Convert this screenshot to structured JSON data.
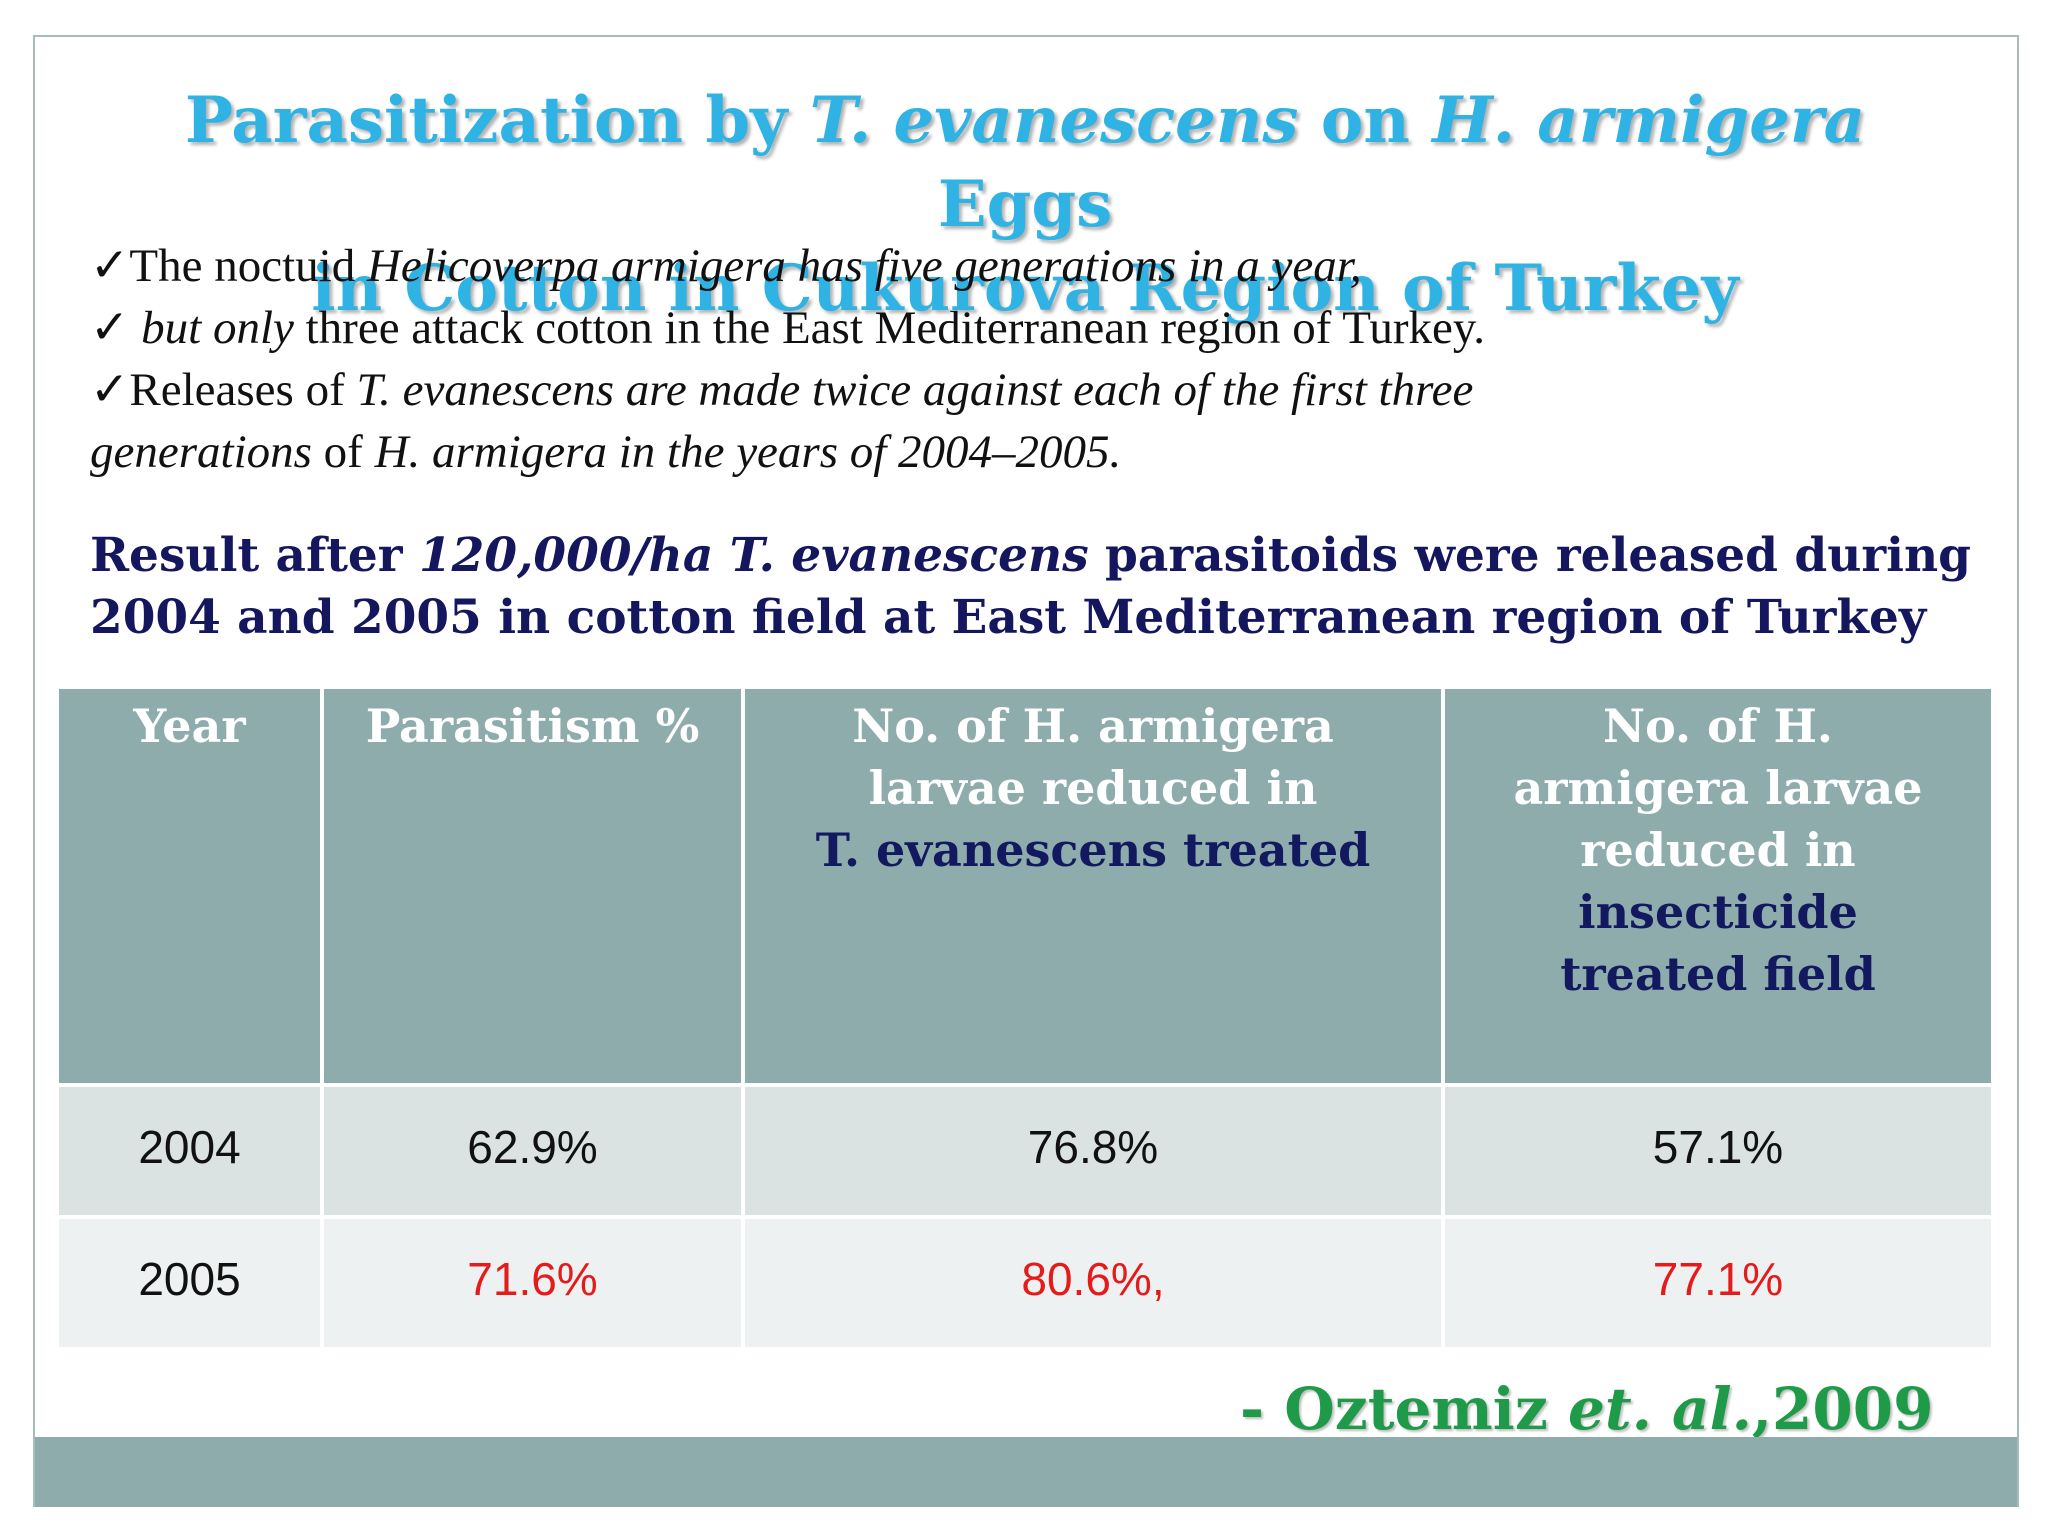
{
  "title": {
    "p1": "Parasitization by ",
    "p2": "T. evanescens",
    "p3": "  on ",
    "p4": "H. armigera",
    "p5": " Eggs",
    "p6": "in Cotton in Cukurova Region of Turkey"
  },
  "bullets": {
    "b1_check": "✓",
    "b1_a": "The noctuid ",
    "b1_b": "Helicoverpa armigera has five generations in a year,",
    "b2_check": "✓ ",
    "b2_a": "but only",
    "b2_b": " three attack cotton in the East Mediterranean region of Turkey.",
    "b3_check": "✓",
    "b3_a": "Releases of ",
    "b3_b": "T. evanescens are made twice against each of the first three",
    "b4_a": "generations",
    "b4_b": " of ",
    "b4_c": "H. armigera in the years of 2004–2005."
  },
  "result": {
    "a": "Result  after ",
    "b": "120,000/ha T. evanescens",
    "c": " parasitoids were released during 2004 and 2005 in cotton field at East Mediterranean region of Turkey"
  },
  "table": {
    "headers": {
      "year": "Year",
      "parasitism": "Parasitism %",
      "te_a": "No. of  H. armigera larvae reduced in",
      "te_b": "T. evanescens treated",
      "ins_a": "No. of  H. armigera larvae reduced in",
      "ins_b": "insecticide treated field"
    },
    "rows": [
      {
        "year": "2004",
        "parasitism": "62.9%",
        "te": "76.8%",
        "ins": "57.1%"
      },
      {
        "year": "2005",
        "parasitism": "71.6%",
        "te": "80.6%,",
        "ins": "77.1%"
      }
    ]
  },
  "citation": {
    "a": "- Oztemiz  ",
    "b": "et. al.",
    "c": ",2009"
  },
  "colors": {
    "title": "#2fb3e4",
    "result_text": "#14165e",
    "header_bg": "#8facad",
    "highlight_red": "#e51b1b",
    "citation": "#1f9a48"
  }
}
